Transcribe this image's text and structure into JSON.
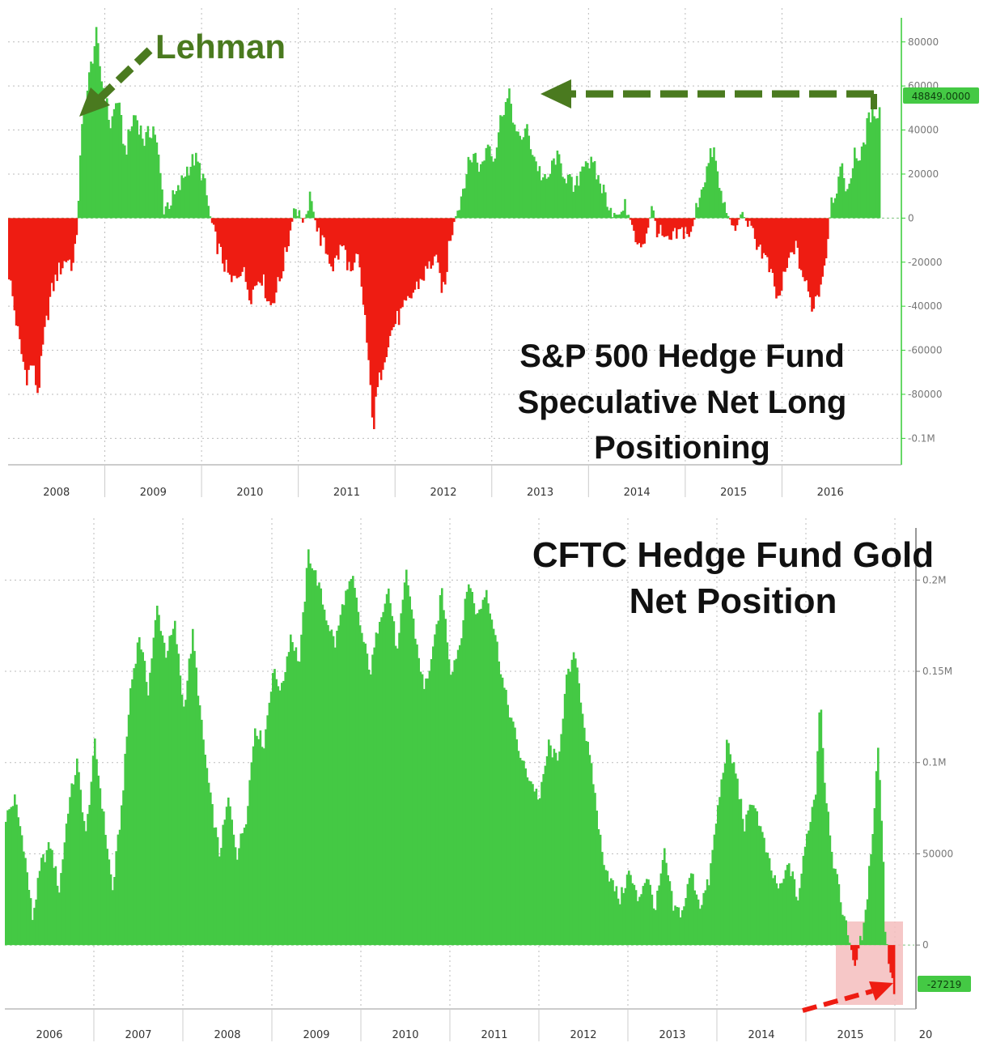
{
  "chart_data": [
    {
      "type": "bar",
      "title_lines": [
        "S&P 500 Hedge Fund",
        "Speculative Net Long",
        "Positioning"
      ],
      "annotation": "Lehman",
      "last_value_label": "48849.0000",
      "last_value": 48849,
      "ylim": [
        -112000,
        88000
      ],
      "yticks": [
        {
          "value": 80000,
          "label": "80000"
        },
        {
          "value": 60000,
          "label": "60000"
        },
        {
          "value": 40000,
          "label": "40000"
        },
        {
          "value": 20000,
          "label": "20000"
        },
        {
          "value": 0,
          "label": "0"
        },
        {
          "value": -20000,
          "label": "-20000"
        },
        {
          "value": -40000,
          "label": "-40000"
        },
        {
          "value": -60000,
          "label": "-60000"
        },
        {
          "value": -80000,
          "label": "-80000"
        },
        {
          "value": -100000,
          "label": "-0.1M"
        }
      ],
      "x_start": 2007.5,
      "x_end": 2016.5,
      "xticks": [
        "2008",
        "2009",
        "2010",
        "2011",
        "2012",
        "2013",
        "2014",
        "2015",
        "2016"
      ],
      "colors": {
        "positive": "#44c944",
        "negative": "#ee1c12",
        "annotation": "#4a7a1f",
        "axis": "#33cc33"
      },
      "anchors": [
        [
          2007.5,
          -25000
        ],
        [
          2007.55,
          -40000
        ],
        [
          2007.62,
          -60000
        ],
        [
          2007.68,
          -72000
        ],
        [
          2007.74,
          -66000
        ],
        [
          2007.8,
          -80000
        ],
        [
          2007.86,
          -55000
        ],
        [
          2007.93,
          -35000
        ],
        [
          2008.0,
          -25000
        ],
        [
          2008.1,
          -18000
        ],
        [
          2008.17,
          -22000
        ],
        [
          2008.2,
          -5000
        ],
        [
          2008.22,
          12000
        ],
        [
          2008.25,
          38000
        ],
        [
          2008.3,
          55000
        ],
        [
          2008.35,
          70000
        ],
        [
          2008.4,
          83000
        ],
        [
          2008.45,
          65000
        ],
        [
          2008.55,
          42000
        ],
        [
          2008.62,
          55000
        ],
        [
          2008.7,
          30000
        ],
        [
          2008.8,
          48000
        ],
        [
          2008.9,
          35000
        ],
        [
          2009.0,
          42000
        ],
        [
          2009.05,
          25000
        ],
        [
          2009.1,
          5000
        ],
        [
          2009.18,
          8000
        ],
        [
          2009.25,
          12000
        ],
        [
          2009.33,
          22000
        ],
        [
          2009.42,
          27000
        ],
        [
          2009.5,
          20000
        ],
        [
          2009.57,
          3000
        ],
        [
          2009.62,
          -8000
        ],
        [
          2009.7,
          -18000
        ],
        [
          2009.8,
          -30000
        ],
        [
          2009.9,
          -22000
        ],
        [
          2010.0,
          -35000
        ],
        [
          2010.1,
          -25000
        ],
        [
          2010.2,
          -40000
        ],
        [
          2010.3,
          -28000
        ],
        [
          2010.38,
          -12000
        ],
        [
          2010.42,
          -3000
        ],
        [
          2010.45,
          6000
        ],
        [
          2010.5,
          3000
        ],
        [
          2010.55,
          -5000
        ],
        [
          2010.6,
          9000
        ],
        [
          2010.65,
          3000
        ],
        [
          2010.68,
          -5000
        ],
        [
          2010.75,
          -12000
        ],
        [
          2010.85,
          -22000
        ],
        [
          2010.95,
          -12000
        ],
        [
          2011.05,
          -28000
        ],
        [
          2011.1,
          -16000
        ],
        [
          2011.18,
          -45000
        ],
        [
          2011.22,
          -70000
        ],
        [
          2011.27,
          -95000
        ],
        [
          2011.3,
          -80000
        ],
        [
          2011.38,
          -62000
        ],
        [
          2011.48,
          -48000
        ],
        [
          2011.58,
          -42000
        ],
        [
          2011.7,
          -32000
        ],
        [
          2011.8,
          -25000
        ],
        [
          2011.9,
          -18000
        ],
        [
          2012.0,
          -35000
        ],
        [
          2012.05,
          -10000
        ],
        [
          2012.1,
          -2000
        ],
        [
          2012.15,
          5000
        ],
        [
          2012.22,
          20000
        ],
        [
          2012.3,
          30000
        ],
        [
          2012.38,
          22000
        ],
        [
          2012.45,
          35000
        ],
        [
          2012.52,
          28000
        ],
        [
          2012.6,
          50000
        ],
        [
          2012.68,
          55000
        ],
        [
          2012.75,
          35000
        ],
        [
          2012.85,
          40000
        ],
        [
          2012.95,
          25000
        ],
        [
          2013.05,
          15000
        ],
        [
          2013.15,
          28000
        ],
        [
          2013.25,
          20000
        ],
        [
          2013.35,
          12000
        ],
        [
          2013.45,
          28000
        ],
        [
          2013.55,
          22000
        ],
        [
          2013.65,
          12000
        ],
        [
          2013.72,
          5000
        ],
        [
          2013.8,
          1000
        ],
        [
          2013.88,
          5000
        ],
        [
          2013.93,
          -2000
        ],
        [
          2014.0,
          -15000
        ],
        [
          2014.08,
          -8000
        ],
        [
          2014.15,
          5000
        ],
        [
          2014.2,
          -5000
        ],
        [
          2014.3,
          -12000
        ],
        [
          2014.4,
          -8000
        ],
        [
          2014.5,
          -5000
        ],
        [
          2014.55,
          -9000
        ],
        [
          2014.62,
          8000
        ],
        [
          2014.7,
          20000
        ],
        [
          2014.78,
          32000
        ],
        [
          2014.85,
          12000
        ],
        [
          2014.92,
          2000
        ],
        [
          2015.0,
          -5000
        ],
        [
          2015.08,
          3000
        ],
        [
          2015.15,
          -5000
        ],
        [
          2015.25,
          -12000
        ],
        [
          2015.35,
          -22000
        ],
        [
          2015.45,
          -38000
        ],
        [
          2015.52,
          -26000
        ],
        [
          2015.62,
          -12000
        ],
        [
          2015.72,
          -28000
        ],
        [
          2015.8,
          -40000
        ],
        [
          2015.88,
          -32000
        ],
        [
          2015.95,
          -15000
        ],
        [
          2016.0,
          8000
        ],
        [
          2016.06,
          15000
        ],
        [
          2016.12,
          22000
        ],
        [
          2016.18,
          10000
        ],
        [
          2016.24,
          32000
        ],
        [
          2016.3,
          25000
        ],
        [
          2016.36,
          40000
        ],
        [
          2016.42,
          48849
        ]
      ]
    },
    {
      "type": "bar",
      "title_lines": [
        "CFTC Hedge Fund Gold",
        "Net Position"
      ],
      "last_value_label": "-27219",
      "last_value": -27219,
      "ylim": [
        -35000,
        225000
      ],
      "yticks": [
        {
          "value": 200000,
          "label": "0.2M"
        },
        {
          "value": 150000,
          "label": "0.15M"
        },
        {
          "value": 100000,
          "label": "0.1M"
        },
        {
          "value": 50000,
          "label": "50000"
        },
        {
          "value": 0,
          "label": "0"
        }
      ],
      "x_start": 2006.0,
      "x_end": 2016.0,
      "xticks": [
        "2006",
        "2007",
        "2008",
        "2009",
        "2010",
        "2011",
        "2012",
        "2013",
        "2014",
        "2015",
        "20"
      ],
      "colors": {
        "positive": "#44c944",
        "negative": "#ee1c12",
        "highlight": "#f4bdbd",
        "arrow": "#ee1c12",
        "axis": "#777777"
      },
      "anchors": [
        [
          2006.0,
          70000
        ],
        [
          2006.1,
          80000
        ],
        [
          2006.2,
          55000
        ],
        [
          2006.3,
          15000
        ],
        [
          2006.4,
          45000
        ],
        [
          2006.5,
          55000
        ],
        [
          2006.6,
          30000
        ],
        [
          2006.7,
          75000
        ],
        [
          2006.8,
          100000
        ],
        [
          2006.9,
          60000
        ],
        [
          2007.0,
          110000
        ],
        [
          2007.1,
          70000
        ],
        [
          2007.2,
          30000
        ],
        [
          2007.3,
          75000
        ],
        [
          2007.4,
          140000
        ],
        [
          2007.5,
          170000
        ],
        [
          2007.6,
          140000
        ],
        [
          2007.7,
          185000
        ],
        [
          2007.8,
          160000
        ],
        [
          2007.9,
          175000
        ],
        [
          2008.0,
          130000
        ],
        [
          2008.1,
          170000
        ],
        [
          2008.2,
          120000
        ],
        [
          2008.3,
          80000
        ],
        [
          2008.4,
          50000
        ],
        [
          2008.5,
          80000
        ],
        [
          2008.6,
          50000
        ],
        [
          2008.7,
          70000
        ],
        [
          2008.8,
          120000
        ],
        [
          2008.9,
          110000
        ],
        [
          2009.0,
          150000
        ],
        [
          2009.1,
          140000
        ],
        [
          2009.2,
          170000
        ],
        [
          2009.3,
          155000
        ],
        [
          2009.4,
          215000
        ],
        [
          2009.5,
          200000
        ],
        [
          2009.6,
          180000
        ],
        [
          2009.7,
          165000
        ],
        [
          2009.8,
          190000
        ],
        [
          2009.9,
          200000
        ],
        [
          2010.0,
          170000
        ],
        [
          2010.1,
          150000
        ],
        [
          2010.2,
          180000
        ],
        [
          2010.3,
          195000
        ],
        [
          2010.4,
          160000
        ],
        [
          2010.5,
          205000
        ],
        [
          2010.6,
          170000
        ],
        [
          2010.7,
          140000
        ],
        [
          2010.8,
          160000
        ],
        [
          2010.9,
          195000
        ],
        [
          2011.0,
          150000
        ],
        [
          2011.1,
          165000
        ],
        [
          2011.2,
          200000
        ],
        [
          2011.3,
          180000
        ],
        [
          2011.4,
          195000
        ],
        [
          2011.5,
          170000
        ],
        [
          2011.6,
          140000
        ],
        [
          2011.7,
          120000
        ],
        [
          2011.8,
          100000
        ],
        [
          2011.9,
          90000
        ],
        [
          2012.0,
          80000
        ],
        [
          2012.1,
          110000
        ],
        [
          2012.2,
          100000
        ],
        [
          2012.3,
          145000
        ],
        [
          2012.4,
          160000
        ],
        [
          2012.5,
          120000
        ],
        [
          2012.6,
          90000
        ],
        [
          2012.7,
          50000
        ],
        [
          2012.8,
          35000
        ],
        [
          2012.9,
          25000
        ],
        [
          2013.0,
          40000
        ],
        [
          2013.1,
          25000
        ],
        [
          2013.2,
          38000
        ],
        [
          2013.3,
          20000
        ],
        [
          2013.4,
          50000
        ],
        [
          2013.5,
          20000
        ],
        [
          2013.6,
          18000
        ],
        [
          2013.7,
          40000
        ],
        [
          2013.8,
          22000
        ],
        [
          2013.9,
          35000
        ],
        [
          2014.0,
          75000
        ],
        [
          2014.1,
          110000
        ],
        [
          2014.2,
          95000
        ],
        [
          2014.3,
          65000
        ],
        [
          2014.4,
          80000
        ],
        [
          2014.5,
          60000
        ],
        [
          2014.6,
          40000
        ],
        [
          2014.7,
          30000
        ],
        [
          2014.8,
          45000
        ],
        [
          2014.9,
          25000
        ],
        [
          2015.0,
          60000
        ],
        [
          2015.1,
          85000
        ],
        [
          2015.15,
          140000
        ],
        [
          2015.2,
          90000
        ],
        [
          2015.3,
          45000
        ],
        [
          2015.38,
          25000
        ],
        [
          2015.45,
          8000
        ],
        [
          2015.5,
          -2000
        ],
        [
          2015.55,
          -12000
        ],
        [
          2015.6,
          4000
        ],
        [
          2015.65,
          10000
        ],
        [
          2015.7,
          40000
        ],
        [
          2015.75,
          70000
        ],
        [
          2015.8,
          110000
        ],
        [
          2015.85,
          60000
        ],
        [
          2015.88,
          10000
        ],
        [
          2015.91,
          -4000
        ],
        [
          2015.94,
          -15000
        ],
        [
          2015.97,
          -22000
        ],
        [
          2016.0,
          -27219
        ]
      ]
    }
  ]
}
